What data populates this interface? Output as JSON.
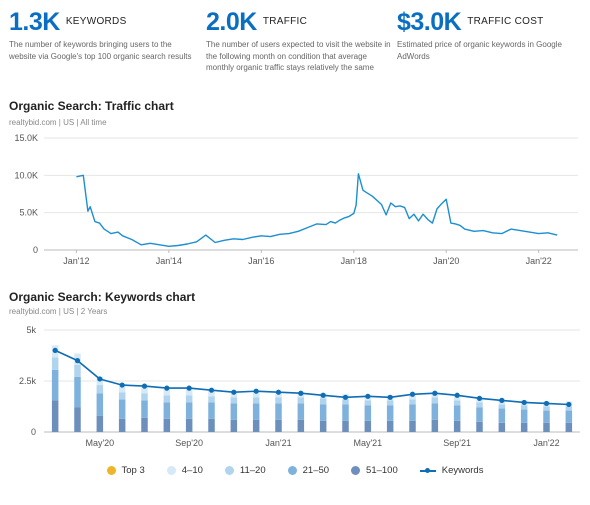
{
  "metrics": [
    {
      "value": "1.3K",
      "unit": "KEYWORDS",
      "desc": "The number of keywords bringing users to the website via Google's top 100 organic search results"
    },
    {
      "value": "2.0K",
      "unit": "TRAFFIC",
      "desc": "The number of users expected to visit the website in the following month on condition that average monthly organic traffic stays relatively the same"
    },
    {
      "value": "$3.0K",
      "unit": "TRAFFIC COST",
      "desc": "Estimated price of organic keywords in Google AdWords"
    }
  ],
  "traffic": {
    "title": "Organic Search: Traffic chart",
    "subtitle": "realtybid.com | US | All time"
  },
  "keywords": {
    "title": "Organic Search: Keywords chart",
    "subtitle": "realtybid.com | US | 2 Years"
  },
  "legend": {
    "items": [
      {
        "label": "Top 3",
        "color": "#f0b429"
      },
      {
        "label": "4–10",
        "color": "#d6e9f7"
      },
      {
        "label": "11–20",
        "color": "#b1d4ee"
      },
      {
        "label": "21–50",
        "color": "#7fb1dd"
      },
      {
        "label": "51–100",
        "color": "#6c8fbb"
      }
    ],
    "keywords_label": "Keywords"
  },
  "chart_data": [
    {
      "type": "line",
      "title": "Organic Search: Traffic chart",
      "ylim": [
        0,
        15000
      ],
      "yticks": [
        "0",
        "5.0K",
        "10.0K",
        "15.0K"
      ],
      "xticks": [
        "Jan'12",
        "Jan'14",
        "Jan'16",
        "Jan'18",
        "Jan'20",
        "Jan'22"
      ],
      "grid": true,
      "series": [
        {
          "color": "#1c8fd1",
          "x": [
            2012.0,
            2012.15,
            2012.25,
            2012.3,
            2012.4,
            2012.5,
            2012.6,
            2012.75,
            2012.9,
            2013.0,
            2013.2,
            2013.4,
            2013.6,
            2013.8,
            2014.0,
            2014.2,
            2014.4,
            2014.6,
            2014.8,
            2015.0,
            2015.2,
            2015.4,
            2015.6,
            2015.8,
            2016.0,
            2016.2,
            2016.4,
            2016.6,
            2016.8,
            2017.0,
            2017.2,
            2017.4,
            2017.5,
            2017.6,
            2017.7,
            2017.8,
            2017.9,
            2018.0,
            2018.05,
            2018.1,
            2018.2,
            2018.4,
            2018.6,
            2018.7,
            2018.8,
            2018.9,
            2019.0,
            2019.1,
            2019.2,
            2019.3,
            2019.4,
            2019.5,
            2019.6,
            2019.7,
            2019.8,
            2019.9,
            2020.0,
            2020.1,
            2020.2,
            2020.3,
            2020.4,
            2020.6,
            2020.8,
            2021.0,
            2021.2,
            2021.4,
            2021.6,
            2021.8,
            2022.0,
            2022.2,
            2022.4
          ],
          "y": [
            9800,
            10000,
            5200,
            5800,
            3800,
            3600,
            2800,
            2200,
            2400,
            1900,
            1400,
            700,
            900,
            700,
            500,
            600,
            800,
            1100,
            2000,
            1000,
            1300,
            1500,
            1400,
            1700,
            1900,
            1800,
            2100,
            2200,
            2500,
            3000,
            3500,
            3400,
            3800,
            3600,
            4000,
            4300,
            4500,
            4900,
            6000,
            10200,
            8000,
            7200,
            6100,
            4700,
            6300,
            5800,
            5900,
            5700,
            4200,
            4800,
            3900,
            4800,
            4100,
            3600,
            5500,
            6200,
            6800,
            3600,
            3500,
            3300,
            2800,
            2500,
            2600,
            2300,
            2200,
            2800,
            2600,
            2400,
            2200,
            2300,
            2000
          ]
        }
      ]
    },
    {
      "type": "bar",
      "title": "Organic Search: Keywords chart",
      "ylim": [
        0,
        5000
      ],
      "yticks": [
        "0",
        "2.5k",
        "5k"
      ],
      "xticks": [
        "May'20",
        "Sep'20",
        "Jan'21",
        "May'21",
        "Sep'21",
        "Jan'22"
      ],
      "grid": true,
      "stack_order": [
        "51–100",
        "21–50",
        "11–20",
        "4–10",
        "Top 3"
      ],
      "bars": [
        [
          1550,
          1500,
          600,
          600,
          0
        ],
        [
          1200,
          1500,
          600,
          550,
          0
        ],
        [
          800,
          1100,
          400,
          400,
          0
        ],
        [
          650,
          950,
          350,
          300,
          0
        ],
        [
          700,
          850,
          350,
          300,
          0
        ],
        [
          650,
          800,
          350,
          300,
          0
        ],
        [
          650,
          800,
          350,
          300,
          0
        ],
        [
          650,
          800,
          300,
          300,
          0
        ],
        [
          600,
          800,
          300,
          250,
          0
        ],
        [
          600,
          800,
          300,
          300,
          0
        ],
        [
          600,
          800,
          300,
          250,
          0
        ],
        [
          600,
          800,
          300,
          250,
          0
        ],
        [
          550,
          800,
          300,
          250,
          0
        ],
        [
          550,
          800,
          250,
          250,
          0
        ],
        [
          550,
          750,
          250,
          250,
          0
        ],
        [
          550,
          750,
          250,
          250,
          0
        ],
        [
          550,
          800,
          250,
          250,
          0
        ],
        [
          600,
          800,
          300,
          250,
          0
        ],
        [
          550,
          750,
          250,
          250,
          0
        ],
        [
          500,
          700,
          250,
          250,
          0
        ],
        [
          450,
          700,
          200,
          250,
          0
        ],
        [
          450,
          650,
          200,
          250,
          0
        ],
        [
          450,
          600,
          200,
          250,
          0
        ],
        [
          450,
          600,
          200,
          250,
          0
        ]
      ],
      "keywords_line": {
        "name": "Keywords",
        "color": "#0f6db5",
        "values": [
          4000,
          3500,
          2600,
          2300,
          2250,
          2150,
          2150,
          2050,
          1950,
          2000,
          1950,
          1900,
          1800,
          1700,
          1750,
          1700,
          1850,
          1900,
          1800,
          1650,
          1550,
          1450,
          1400,
          1350
        ]
      }
    }
  ]
}
